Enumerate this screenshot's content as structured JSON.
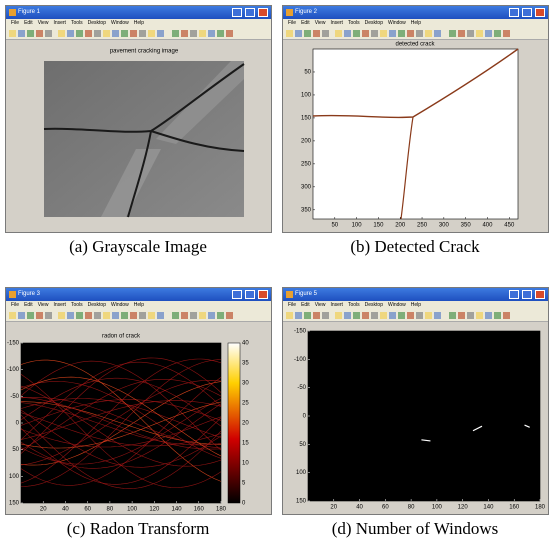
{
  "menu": [
    "File",
    "Edit",
    "View",
    "Insert",
    "Tools",
    "Desktop",
    "Window",
    "Help"
  ],
  "panels": [
    {
      "window_title": "Figure 1",
      "plot_title": "pavement cracking image",
      "caption": "(a) Grayscale Image"
    },
    {
      "window_title": "Figure 2",
      "plot_title": "detected crack",
      "caption": "(b) Detected Crack",
      "xlim": [
        0,
        470
      ],
      "ylim": [
        0,
        370
      ],
      "xticks": [
        50,
        100,
        150,
        200,
        250,
        300,
        350,
        400,
        450
      ],
      "yticks": [
        50,
        100,
        150,
        200,
        250,
        300,
        350
      ]
    },
    {
      "window_title": "Figure 3",
      "plot_title": "radon of crack",
      "caption": "(c) Radon Transform",
      "xlim": [
        0,
        180
      ],
      "ylim": [
        -150,
        150
      ],
      "xticks": [
        20,
        40,
        60,
        80,
        100,
        120,
        140,
        160,
        180
      ],
      "yticks": [
        -150,
        -100,
        -50,
        0,
        50,
        100,
        150
      ],
      "colorbar_ticks": [
        0,
        5,
        10,
        15,
        20,
        25,
        30,
        35,
        40
      ]
    },
    {
      "window_title": "Figure 5",
      "caption": "(d) Number of Windows",
      "xlim": [
        0,
        180
      ],
      "ylim": [
        -150,
        150
      ],
      "xticks": [
        20,
        40,
        60,
        80,
        100,
        120,
        140,
        160,
        180
      ],
      "yticks": [
        -150,
        -100,
        -50,
        0,
        50,
        100,
        150
      ]
    }
  ]
}
